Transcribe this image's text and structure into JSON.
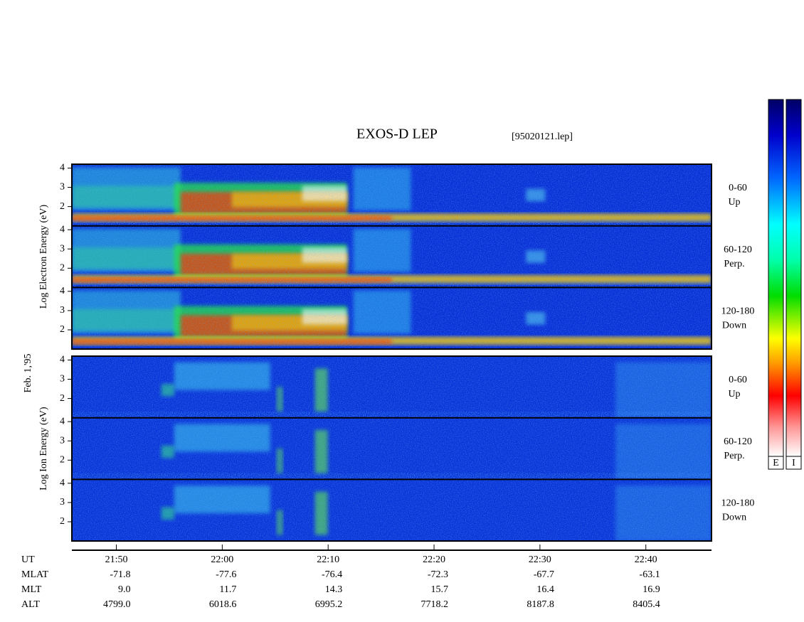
{
  "chart_data": {
    "type": "spectrogram",
    "title": "EXOS-D LEP",
    "file": "[95020121.lep]",
    "date": "Feb. 1,'95",
    "xlabel": "UT",
    "xlim": [
      1305.8,
      1366.2
    ],
    "xticks": [
      {
        "value": 1310,
        "label": "21:50"
      },
      {
        "value": 1320,
        "label": "22:00"
      },
      {
        "value": 1330,
        "label": "22:10"
      },
      {
        "value": 1340,
        "label": "22:20"
      },
      {
        "value": 1350,
        "label": "22:30"
      },
      {
        "value": 1360,
        "label": "22:40"
      }
    ],
    "ylim": [
      1,
      4.2
    ],
    "yticks": [
      2,
      3,
      4
    ],
    "groups": [
      {
        "ylabel": "Log Electron Energy (eV)",
        "panels": [
          {
            "angle": "0-60",
            "direction": "Up"
          },
          {
            "angle": "60-120",
            "direction": "Perp."
          },
          {
            "angle": "120-180",
            "direction": "Down"
          }
        ]
      },
      {
        "ylabel": "Log Ion Energy (eV)",
        "panels": [
          {
            "angle": "0-60",
            "direction": "Up"
          },
          {
            "angle": "60-120",
            "direction": "Perp."
          },
          {
            "angle": "120-180",
            "direction": "Down"
          }
        ]
      }
    ],
    "colorbars": [
      "E",
      "I"
    ],
    "rows": [
      {
        "label": "MLAT",
        "values": [
          "-71.8",
          "-77.6",
          "-76.4",
          "-72.3",
          "-67.7",
          "-63.1"
        ]
      },
      {
        "label": "MLT",
        "values": [
          "9.0",
          "11.7",
          "14.3",
          "15.7",
          "16.4",
          "16.9"
        ]
      },
      {
        "label": "ALT",
        "values": [
          "4799.0",
          "6018.6",
          "6995.2",
          "7718.2",
          "8187.8",
          "8405.4"
        ]
      }
    ]
  }
}
